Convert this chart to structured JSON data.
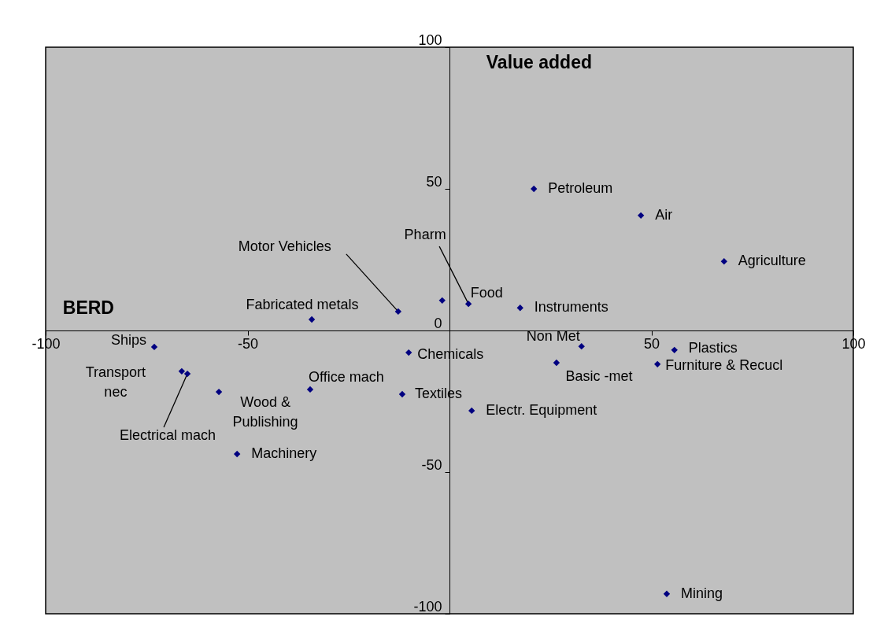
{
  "chart_data": {
    "type": "scatter",
    "xlabel": "BERD",
    "ylabel": "Value added",
    "x": [
      20.9,
      47.4,
      68,
      17.5,
      -1.8,
      4.7,
      -12.7,
      -34.1,
      -73.1,
      -66.3,
      -64.9,
      -57.1,
      -34.5,
      -52.6,
      -10.1,
      -11.7,
      5.5,
      32.7,
      26.5,
      55.7,
      51.5,
      53.8
    ],
    "series": [
      {
        "color": "#000080",
        "values": [
          50,
          40.6,
          24.4,
          8,
          10.6,
          9.4,
          6.7,
          3.9,
          -5.8,
          -14.4,
          -15.3,
          -21.7,
          -20.8,
          -43.6,
          -7.8,
          -22.5,
          -28.3,
          -5.6,
          -11.4,
          -6.9,
          -11.9,
          -93
        ]
      }
    ],
    "annotations": [
      {
        "text": "Petroleum",
        "x": 20.9,
        "y": 50
      },
      {
        "text": "Air",
        "x": 47.4,
        "y": 40.6
      },
      {
        "text": "Agriculture",
        "x": 68,
        "y": 24.4
      },
      {
        "text": "Instruments",
        "x": 17.5,
        "y": 8
      },
      {
        "text": "Food",
        "x": -1.8,
        "y": 10.6
      },
      {
        "text": "Pharm",
        "x": 4.7,
        "y": 9.4
      },
      {
        "text": "Motor Vehicles",
        "x": -12.7,
        "y": 6.7
      },
      {
        "text": "Fabricated metals",
        "x": -34.1,
        "y": 3.9
      },
      {
        "text": "Ships",
        "x": -73.1,
        "y": -5.8
      },
      {
        "text": "Transport nec",
        "x": -66.3,
        "y": -14.4
      },
      {
        "text": "Electrical mach",
        "x": -64.9,
        "y": -15.3
      },
      {
        "text": "Wood & Publishing",
        "x": -57.1,
        "y": -21.7
      },
      {
        "text": "Office mach",
        "x": -34.5,
        "y": -20.8
      },
      {
        "text": "Machinery",
        "x": -52.6,
        "y": -43.6
      },
      {
        "text": "Chemicals",
        "x": -10.1,
        "y": -7.8
      },
      {
        "text": "Textiles",
        "x": -11.7,
        "y": -22.5
      },
      {
        "text": "Electr. Equipment",
        "x": 5.5,
        "y": -28.3
      },
      {
        "text": "Non Met",
        "x": 32.7,
        "y": -5.6
      },
      {
        "text": "Basic -met",
        "x": 26.5,
        "y": -11.4
      },
      {
        "text": "Plastics",
        "x": 55.7,
        "y": -6.9
      },
      {
        "text": "Furniture & Recucl",
        "x": 51.5,
        "y": -11.9
      },
      {
        "text": "Mining",
        "x": 53.8,
        "y": -93
      }
    ],
    "xlim": [
      -100,
      100
    ],
    "ylim": [
      -100,
      100
    ],
    "xticks": [
      -100,
      -50,
      {
        "value": 0,
        "label": null
      },
      50,
      100
    ],
    "yticks": [
      -100,
      -50,
      0,
      50,
      100
    ],
    "marker": "diamond",
    "grid": false,
    "legend": false
  }
}
